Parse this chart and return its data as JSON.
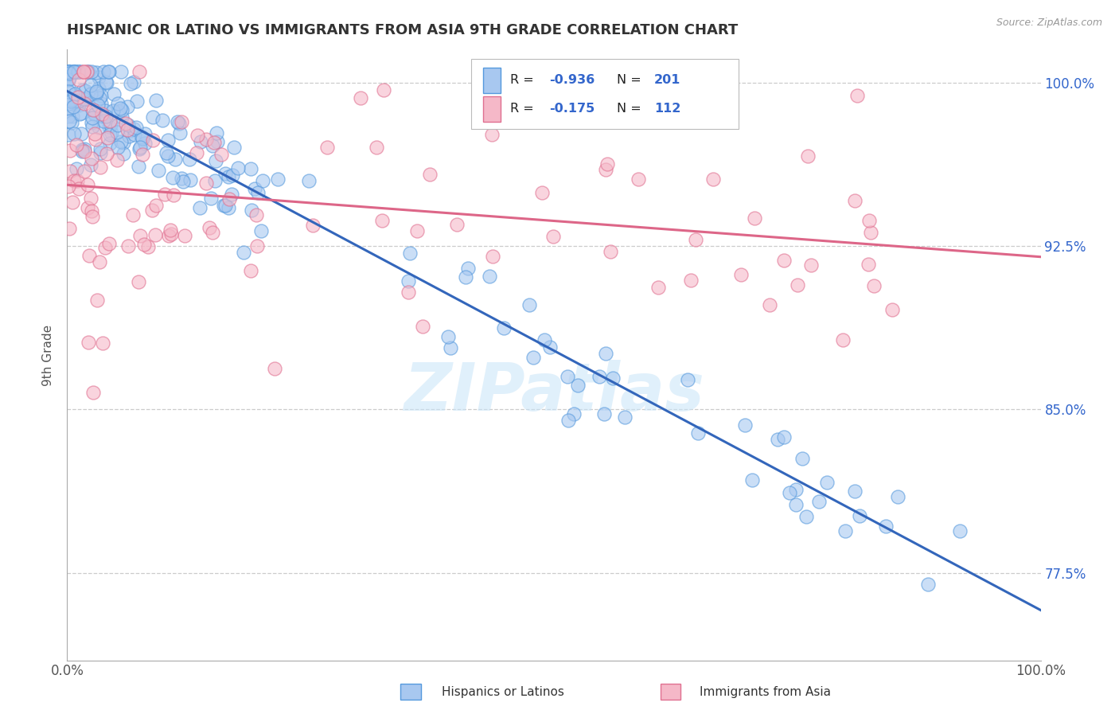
{
  "title": "HISPANIC OR LATINO VS IMMIGRANTS FROM ASIA 9TH GRADE CORRELATION CHART",
  "source_text": "Source: ZipAtlas.com",
  "ylabel": "9th Grade",
  "xlim": [
    0.0,
    1.0
  ],
  "ylim": [
    0.735,
    1.015
  ],
  "yticks_grid": [
    0.775,
    0.85,
    0.925,
    1.0
  ],
  "right_ytick_labels": [
    "77.5%",
    "85.0%",
    "92.5%",
    "100.0%"
  ],
  "xtick_positions": [
    0.0,
    1.0
  ],
  "xtick_labels": [
    "0.0%",
    "100.0%"
  ],
  "legend_r1_val": "-0.936",
  "legend_n1_val": "201",
  "legend_r2_val": "-0.175",
  "legend_n2_val": "112",
  "blue_face_color": "#a8c8f0",
  "blue_edge_color": "#5599dd",
  "pink_face_color": "#f5b8c8",
  "pink_edge_color": "#e07090",
  "blue_line_color": "#3366bb",
  "pink_line_color": "#dd6688",
  "blue_trend_x": [
    0.0,
    1.0
  ],
  "blue_trend_y": [
    0.996,
    0.758
  ],
  "pink_trend_x": [
    0.0,
    1.0
  ],
  "pink_trend_y": [
    0.953,
    0.92
  ],
  "watermark_text": "ZIPatlas",
  "legend_label_blue": "Hispanics or Latinos",
  "legend_label_pink": "Immigrants from Asia",
  "background_color": "#ffffff",
  "grid_color": "#cccccc",
  "title_color": "#333333",
  "axis_label_color": "#555555",
  "r_color": "#3366cc",
  "n_color": "#3366cc"
}
